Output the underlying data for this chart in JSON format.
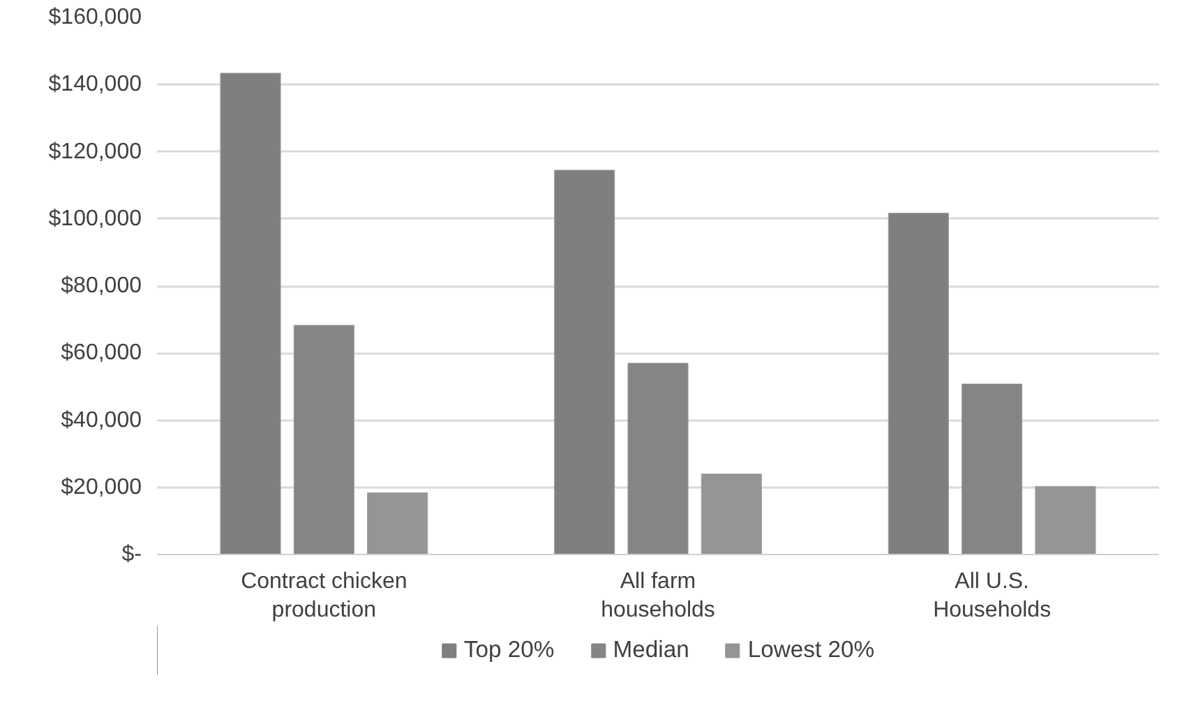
{
  "chart_data": {
    "type": "bar",
    "categories": [
      "Contract chicken production",
      "All farm households",
      "All U.S. Households"
    ],
    "series": [
      {
        "name": "Top 20%",
        "color": "#7f7f7f",
        "values": [
          143400,
          114500,
          101700
        ]
      },
      {
        "name": "Median",
        "color": "#858585",
        "values": [
          68300,
          57000,
          50800
        ]
      },
      {
        "name": "Lowest 20%",
        "color": "#959595",
        "values": [
          18400,
          24000,
          20300
        ]
      }
    ],
    "ylim": [
      0,
      160000
    ],
    "yticks": [
      {
        "value": 0,
        "label": "$-"
      },
      {
        "value": 20000,
        "label": "$20,000"
      },
      {
        "value": 40000,
        "label": "$40,000"
      },
      {
        "value": 60000,
        "label": "$60,000"
      },
      {
        "value": 80000,
        "label": "$80,000"
      },
      {
        "value": 100000,
        "label": "$100,000"
      },
      {
        "value": 120000,
        "label": "$120,000"
      },
      {
        "value": 140000,
        "label": "$140,000"
      },
      {
        "value": 160000,
        "label": "$160,000"
      }
    ],
    "grid": "y",
    "legend": "bottom"
  }
}
